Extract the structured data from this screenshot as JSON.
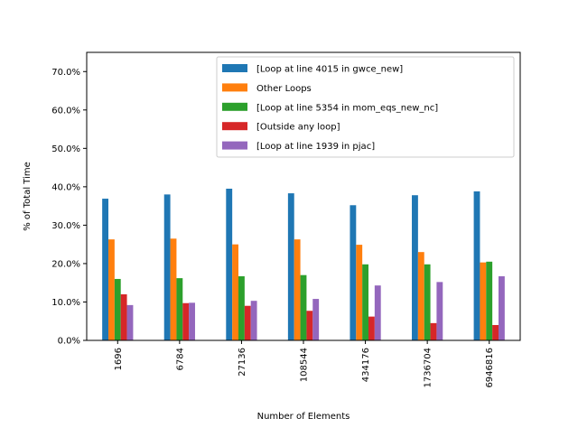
{
  "chart_data": {
    "type": "bar",
    "xlabel": "Number of Elements",
    "ylabel": "% of Total Time",
    "ylim": [
      0,
      75
    ],
    "y_ticks": [
      0,
      10,
      20,
      30,
      40,
      50,
      60,
      70
    ],
    "y_tick_labels": [
      "0.0%",
      "10.0%",
      "20.0%",
      "30.0%",
      "40.0%",
      "50.0%",
      "60.0%",
      "70.0%"
    ],
    "categories": [
      "1696",
      "6784",
      "27136",
      "108544",
      "434176",
      "1736704",
      "6946816"
    ],
    "legend_position": "top-right",
    "grid": false,
    "series": [
      {
        "name": "[Loop at line 4015 in gwce_new]",
        "color": "#1f77b4",
        "values": [
          36.9,
          38.0,
          39.5,
          38.3,
          35.2,
          37.8,
          38.8
        ]
      },
      {
        "name": "Other Loops",
        "color": "#ff7f0e",
        "values": [
          26.3,
          26.5,
          25.0,
          26.3,
          24.9,
          23.0,
          20.3
        ]
      },
      {
        "name": "[Loop at line 5354 in mom_eqs_new_nc]",
        "color": "#2ca02c",
        "values": [
          16.0,
          16.2,
          16.7,
          17.0,
          19.8,
          19.8,
          20.5
        ]
      },
      {
        "name": "[Outside any loop]",
        "color": "#d62728",
        "values": [
          12.0,
          9.7,
          9.0,
          7.7,
          6.2,
          4.5,
          4.0
        ]
      },
      {
        "name": "[Loop at line 1939 in pjac]",
        "color": "#9467bd",
        "values": [
          9.2,
          9.8,
          10.3,
          10.8,
          14.3,
          15.2,
          16.7
        ]
      }
    ]
  }
}
